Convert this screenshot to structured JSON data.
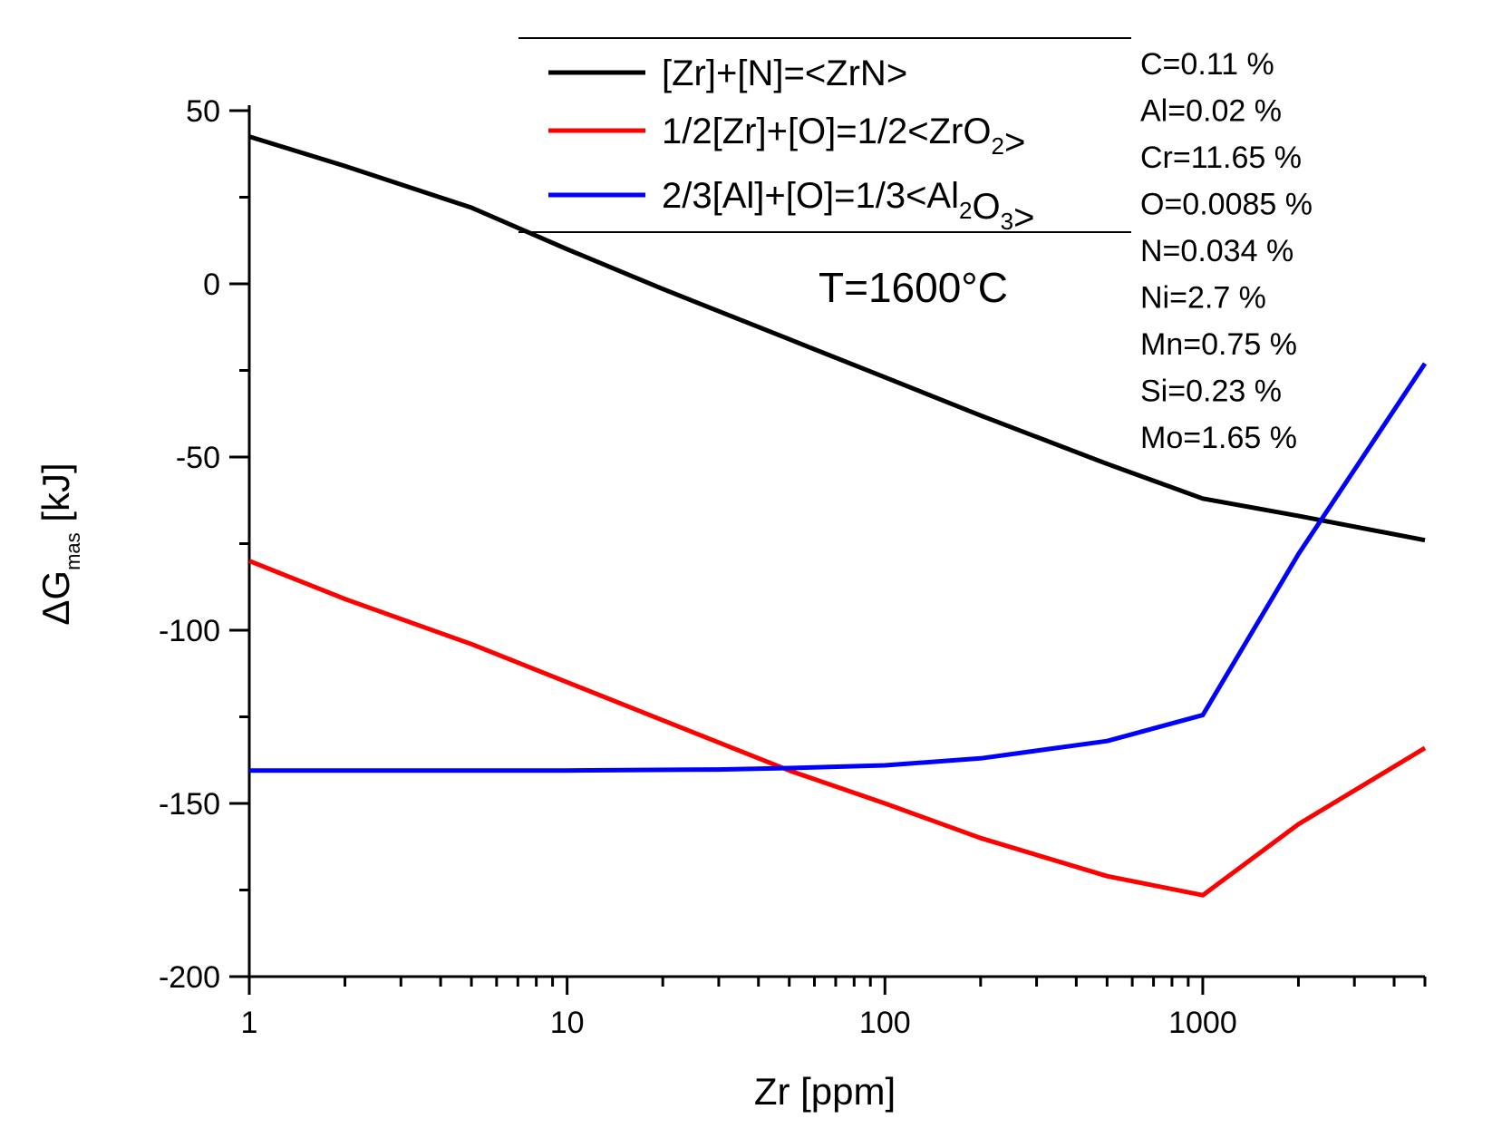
{
  "chart_data": {
    "type": "line",
    "x_scale": "log",
    "xlim": [
      1,
      5000
    ],
    "ylim": [
      -200,
      50
    ],
    "xlabel": "Zr [ppm]",
    "ylabel": {
      "main": "ΔG",
      "sub": "mas",
      "unit": " [kJ]"
    },
    "x_ticks": [
      {
        "value": 1,
        "label": "1"
      },
      {
        "value": 10,
        "label": "10"
      },
      {
        "value": 100,
        "label": "100"
      },
      {
        "value": 1000,
        "label": "1000"
      }
    ],
    "y_ticks": [
      {
        "value": 50,
        "label": "50"
      },
      {
        "value": 0,
        "label": "0"
      },
      {
        "value": -50,
        "label": "-50"
      },
      {
        "value": -100,
        "label": "-100"
      },
      {
        "value": -150,
        "label": "-150"
      },
      {
        "value": -200,
        "label": "-200"
      }
    ],
    "series": [
      {
        "name": "[Zr]+[N]=<ZrN>",
        "label_parts": [
          {
            "t": "[Zr]+[N]=<ZrN>"
          }
        ],
        "color": "#000000",
        "points": [
          [
            1,
            42.5
          ],
          [
            2,
            34
          ],
          [
            5,
            22
          ],
          [
            10,
            10
          ],
          [
            20,
            -1.5
          ],
          [
            50,
            -16
          ],
          [
            100,
            -27
          ],
          [
            200,
            -38
          ],
          [
            500,
            -52
          ],
          [
            1000,
            -62
          ],
          [
            2000,
            -67
          ],
          [
            5000,
            -74
          ]
        ]
      },
      {
        "name": "1/2[Zr]+[O]=1/2<ZrO2>",
        "label_parts": [
          {
            "t": "1/2[Zr]+[O]=1/2<ZrO"
          },
          {
            "t": "2",
            "sub": true
          },
          {
            "t": ">"
          }
        ],
        "color": "#ff0000",
        "points": [
          [
            1,
            -80
          ],
          [
            2,
            -91
          ],
          [
            5,
            -104
          ],
          [
            10,
            -115
          ],
          [
            20,
            -126
          ],
          [
            50,
            -140.5
          ],
          [
            100,
            -150
          ],
          [
            200,
            -160
          ],
          [
            500,
            -171
          ],
          [
            1000,
            -176.5
          ],
          [
            2000,
            -156
          ],
          [
            5000,
            -134
          ]
        ]
      },
      {
        "name": "2/3[Al]+[O]=1/3<Al2O3>",
        "label_parts": [
          {
            "t": "2/3[Al]+[O]=1/3<Al"
          },
          {
            "t": "2",
            "sub": true
          },
          {
            "t": "O"
          },
          {
            "t": "3",
            "sub": true
          },
          {
            "t": ">"
          }
        ],
        "color": "#0000ff",
        "points": [
          [
            1,
            -140.5
          ],
          [
            10,
            -140.5
          ],
          [
            30,
            -140.2
          ],
          [
            50,
            -139.8
          ],
          [
            100,
            -139
          ],
          [
            200,
            -137
          ],
          [
            500,
            -132
          ],
          [
            1000,
            -124.5
          ],
          [
            2000,
            -78
          ],
          [
            5000,
            -23
          ]
        ]
      }
    ],
    "annotations": {
      "temperature": "T=1600°C",
      "composition": [
        "C=0.11 %",
        "Al=0.02 %",
        "Cr=11.65 %",
        "O=0.0085 %",
        "N=0.034 %",
        "Ni=2.7 %",
        "Mn=0.75 %",
        "Si=0.23 %",
        "Mo=1.65 %"
      ]
    },
    "legend_position": "top"
  }
}
